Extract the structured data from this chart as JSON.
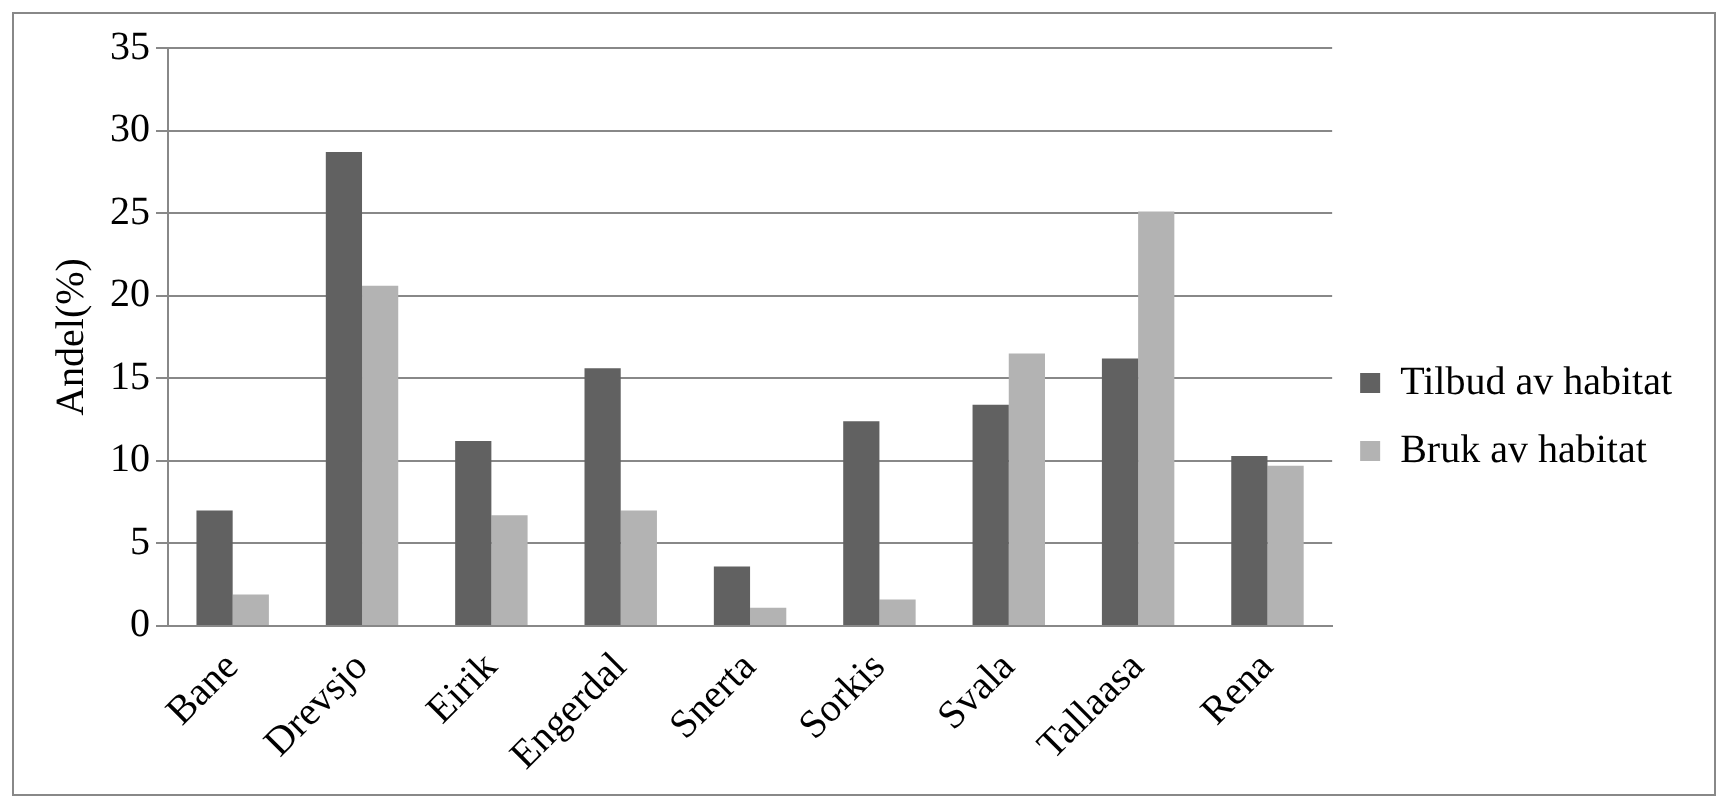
{
  "chart_data": {
    "type": "bar",
    "ylabel": "Andel(%)",
    "categories": [
      "Bane",
      "Drevsjo",
      "Eirik",
      "Engerdal",
      "Snerta",
      "Sorkis",
      "Svala",
      "Tallaasa",
      "Rena"
    ],
    "series": [
      {
        "name": "Tilbud av habitat",
        "color": "#616161",
        "values": [
          7.0,
          28.7,
          11.2,
          15.6,
          3.6,
          12.4,
          13.4,
          16.2,
          10.3
        ]
      },
      {
        "name": "Bruk av habitat",
        "color": "#b3b3b3",
        "values": [
          1.9,
          20.6,
          6.7,
          7.0,
          1.1,
          1.6,
          16.5,
          25.1,
          9.7
        ]
      }
    ],
    "ylim": [
      0,
      35
    ],
    "yticks": [
      0,
      5,
      10,
      15,
      20,
      25,
      30,
      35
    ],
    "grid": "y",
    "legend": "right"
  }
}
